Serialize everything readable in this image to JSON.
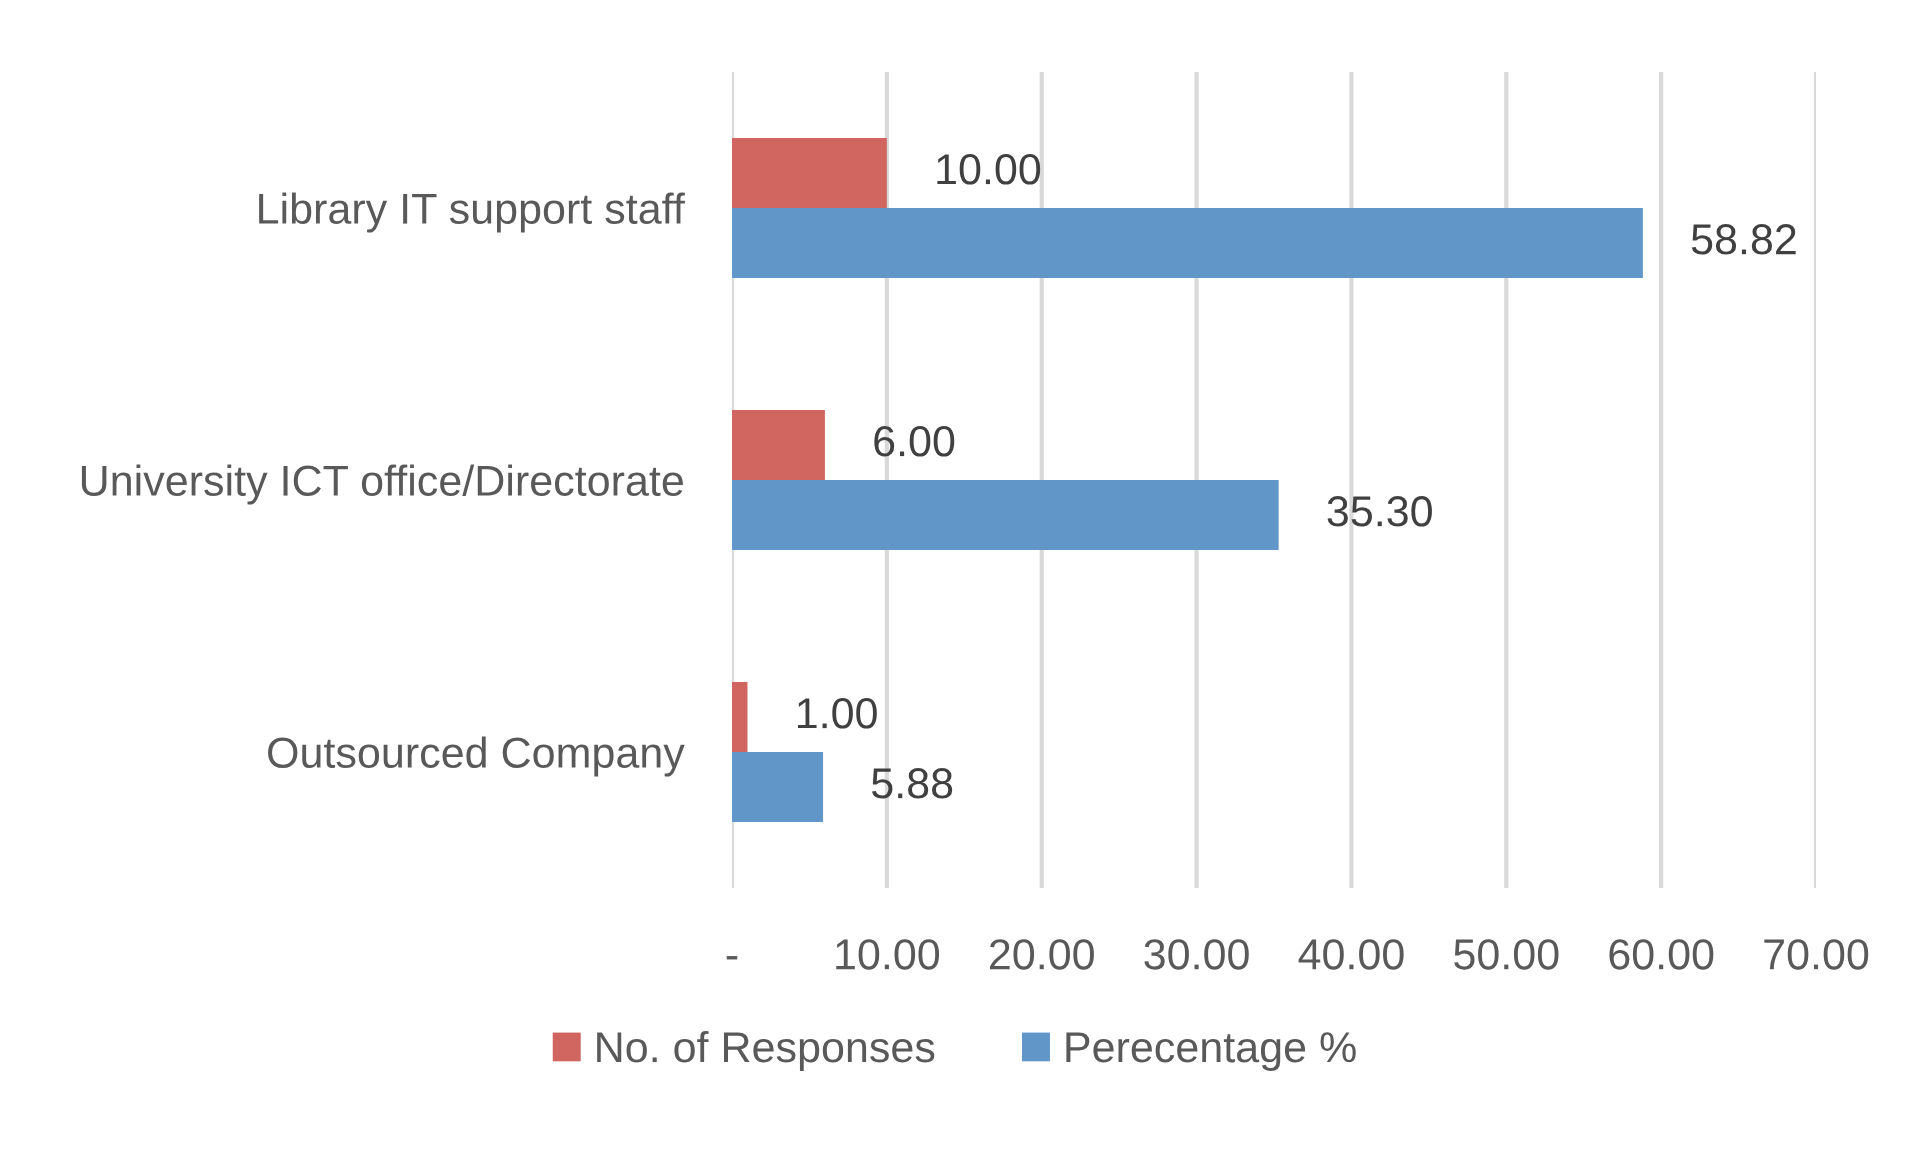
{
  "chart_data": {
    "type": "bar",
    "orientation": "horizontal",
    "categories": [
      "Library IT support staff",
      "University ICT office/Directorate",
      "Outsourced Company"
    ],
    "series": [
      {
        "name": "No. of Responses",
        "color": "#d0665f",
        "values": [
          10,
          6,
          1
        ],
        "value_labels": [
          "10.00",
          "6.00",
          "1.00"
        ]
      },
      {
        "name": "Perecentage %",
        "color": "#6096c8",
        "values": [
          58.82,
          35.3,
          5.88
        ],
        "value_labels": [
          "58.82",
          "35.30",
          "5.88"
        ]
      }
    ],
    "xlim": [
      0,
      70
    ],
    "xticks": [
      {
        "value": 0,
        "label": "-"
      },
      {
        "value": 10,
        "label": "10.00"
      },
      {
        "value": 20,
        "label": "20.00"
      },
      {
        "value": 30,
        "label": "30.00"
      },
      {
        "value": 40,
        "label": "40.00"
      },
      {
        "value": 50,
        "label": "50.00"
      },
      {
        "value": 60,
        "label": "60.00"
      },
      {
        "value": 70,
        "label": "70.00"
      }
    ],
    "grid": "x",
    "legend": "bottom"
  }
}
